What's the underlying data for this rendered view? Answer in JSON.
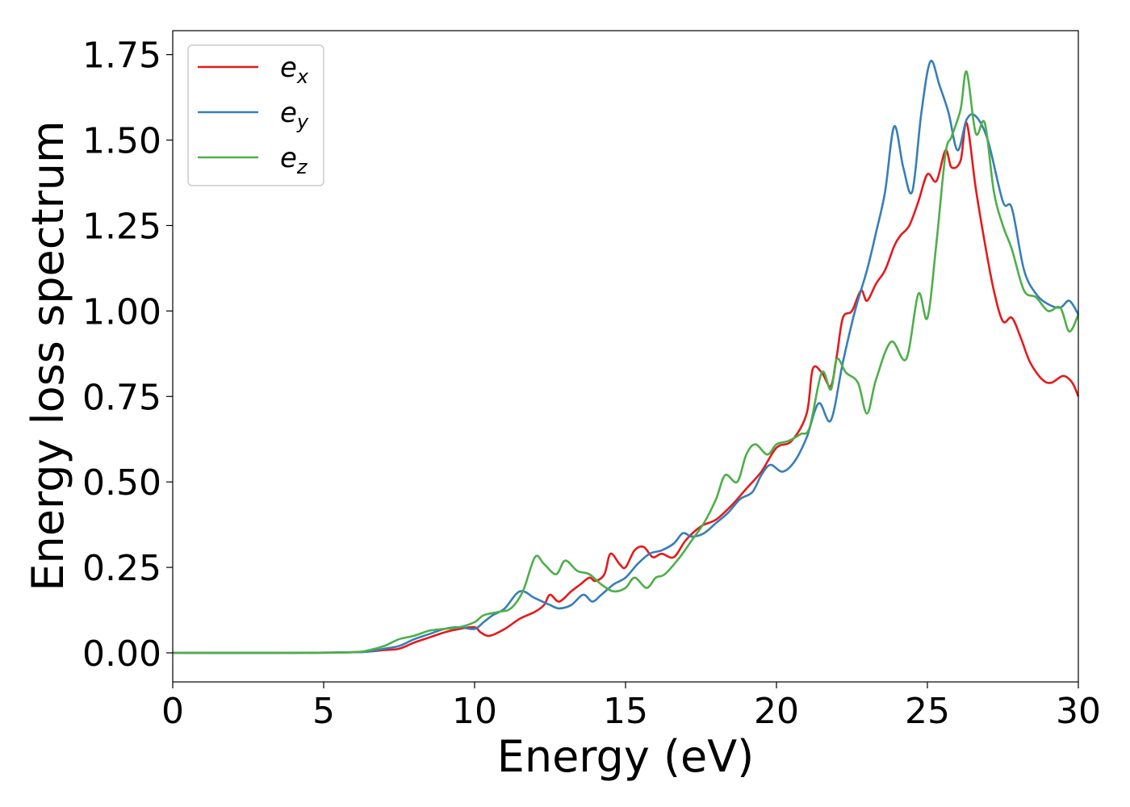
{
  "chart_data": {
    "type": "line",
    "title": "",
    "xlabel": "Energy (eV)",
    "ylabel": "Energy loss spectrum",
    "xlim": [
      0,
      30
    ],
    "ylim": [
      -0.085,
      1.82
    ],
    "xticks": [
      0,
      5,
      10,
      15,
      20,
      25,
      30
    ],
    "xtick_labels": [
      "0",
      "5",
      "10",
      "15",
      "20",
      "25",
      "30"
    ],
    "yticks": [
      0.0,
      0.25,
      0.5,
      0.75,
      1.0,
      1.25,
      1.5,
      1.75
    ],
    "ytick_labels": [
      "0.00",
      "0.25",
      "0.50",
      "0.75",
      "1.00",
      "1.25",
      "1.50",
      "1.75"
    ],
    "grid": false,
    "legend_position": "upper-left",
    "series": [
      {
        "name": "e_x",
        "base": "e",
        "sub": "x",
        "color": "#e41a1c",
        "points": [
          [
            0,
            0
          ],
          [
            4,
            0
          ],
          [
            6,
            0.002
          ],
          [
            6.5,
            0.004
          ],
          [
            7,
            0.008
          ],
          [
            7.5,
            0.012
          ],
          [
            8,
            0.03
          ],
          [
            8.5,
            0.045
          ],
          [
            9,
            0.06
          ],
          [
            9.5,
            0.07
          ],
          [
            10,
            0.075
          ],
          [
            10.2,
            0.06
          ],
          [
            10.5,
            0.05
          ],
          [
            11,
            0.07
          ],
          [
            11.5,
            0.1
          ],
          [
            12,
            0.12
          ],
          [
            12.3,
            0.14
          ],
          [
            12.5,
            0.17
          ],
          [
            12.8,
            0.15
          ],
          [
            13.2,
            0.18
          ],
          [
            13.5,
            0.2
          ],
          [
            13.8,
            0.22
          ],
          [
            14,
            0.21
          ],
          [
            14.3,
            0.23
          ],
          [
            14.5,
            0.29
          ],
          [
            14.8,
            0.26
          ],
          [
            15,
            0.25
          ],
          [
            15.3,
            0.3
          ],
          [
            15.6,
            0.31
          ],
          [
            15.9,
            0.28
          ],
          [
            16.2,
            0.29
          ],
          [
            16.6,
            0.28
          ],
          [
            17,
            0.33
          ],
          [
            17.5,
            0.37
          ],
          [
            18,
            0.39
          ],
          [
            18.5,
            0.43
          ],
          [
            19,
            0.48
          ],
          [
            19.5,
            0.53
          ],
          [
            20,
            0.6
          ],
          [
            20.5,
            0.62
          ],
          [
            21,
            0.7
          ],
          [
            21.2,
            0.83
          ],
          [
            21.5,
            0.82
          ],
          [
            21.8,
            0.78
          ],
          [
            22,
            0.87
          ],
          [
            22.2,
            0.98
          ],
          [
            22.5,
            1.0
          ],
          [
            22.8,
            1.06
          ],
          [
            23,
            1.03
          ],
          [
            23.3,
            1.08
          ],
          [
            23.6,
            1.12
          ],
          [
            23.9,
            1.19
          ],
          [
            24.1,
            1.22
          ],
          [
            24.4,
            1.25
          ],
          [
            24.7,
            1.32
          ],
          [
            25,
            1.4
          ],
          [
            25.3,
            1.38
          ],
          [
            25.6,
            1.47
          ],
          [
            25.8,
            1.42
          ],
          [
            26.1,
            1.44
          ],
          [
            26.3,
            1.55
          ],
          [
            26.6,
            1.36
          ],
          [
            26.9,
            1.2
          ],
          [
            27.2,
            1.06
          ],
          [
            27.5,
            0.97
          ],
          [
            27.8,
            0.98
          ],
          [
            28.1,
            0.92
          ],
          [
            28.4,
            0.85
          ],
          [
            28.8,
            0.8
          ],
          [
            29.1,
            0.79
          ],
          [
            29.5,
            0.81
          ],
          [
            29.8,
            0.79
          ],
          [
            30,
            0.75
          ]
        ]
      },
      {
        "name": "e_y",
        "base": "e",
        "sub": "y",
        "color": "#377eb8",
        "points": [
          [
            0,
            0
          ],
          [
            4,
            0
          ],
          [
            6,
            0.002
          ],
          [
            6.5,
            0.004
          ],
          [
            7,
            0.012
          ],
          [
            7.5,
            0.02
          ],
          [
            8,
            0.04
          ],
          [
            8.5,
            0.055
          ],
          [
            9,
            0.07
          ],
          [
            9.5,
            0.075
          ],
          [
            10,
            0.07
          ],
          [
            10.3,
            0.09
          ],
          [
            10.6,
            0.11
          ],
          [
            11,
            0.13
          ],
          [
            11.5,
            0.18
          ],
          [
            12,
            0.16
          ],
          [
            12.5,
            0.14
          ],
          [
            12.8,
            0.13
          ],
          [
            13.2,
            0.14
          ],
          [
            13.6,
            0.17
          ],
          [
            13.9,
            0.15
          ],
          [
            14.2,
            0.17
          ],
          [
            14.6,
            0.2
          ],
          [
            15,
            0.22
          ],
          [
            15.4,
            0.26
          ],
          [
            15.8,
            0.29
          ],
          [
            16.2,
            0.3
          ],
          [
            16.6,
            0.32
          ],
          [
            16.9,
            0.35
          ],
          [
            17.2,
            0.34
          ],
          [
            17.6,
            0.35
          ],
          [
            18,
            0.38
          ],
          [
            18.4,
            0.41
          ],
          [
            18.8,
            0.45
          ],
          [
            19.2,
            0.47
          ],
          [
            19.5,
            0.52
          ],
          [
            19.8,
            0.55
          ],
          [
            20.2,
            0.53
          ],
          [
            20.6,
            0.56
          ],
          [
            21,
            0.63
          ],
          [
            21.4,
            0.73
          ],
          [
            21.8,
            0.68
          ],
          [
            22.2,
            0.85
          ],
          [
            22.6,
            1.0
          ],
          [
            23,
            1.12
          ],
          [
            23.3,
            1.23
          ],
          [
            23.6,
            1.35
          ],
          [
            23.9,
            1.54
          ],
          [
            24.2,
            1.42
          ],
          [
            24.5,
            1.35
          ],
          [
            24.8,
            1.58
          ],
          [
            25.1,
            1.73
          ],
          [
            25.4,
            1.66
          ],
          [
            25.7,
            1.58
          ],
          [
            26,
            1.47
          ],
          [
            26.3,
            1.56
          ],
          [
            26.6,
            1.57
          ],
          [
            27,
            1.5
          ],
          [
            27.5,
            1.32
          ],
          [
            27.8,
            1.3
          ],
          [
            28.2,
            1.12
          ],
          [
            28.6,
            1.05
          ],
          [
            29,
            1.02
          ],
          [
            29.4,
            1.01
          ],
          [
            29.7,
            1.03
          ],
          [
            30,
            0.99
          ]
        ]
      },
      {
        "name": "e_z",
        "base": "e",
        "sub": "z",
        "color": "#4daf4a",
        "points": [
          [
            0,
            0
          ],
          [
            4,
            0
          ],
          [
            6,
            0.002
          ],
          [
            6.5,
            0.008
          ],
          [
            7,
            0.02
          ],
          [
            7.5,
            0.04
          ],
          [
            8,
            0.05
          ],
          [
            8.5,
            0.065
          ],
          [
            9,
            0.07
          ],
          [
            9.5,
            0.075
          ],
          [
            10,
            0.09
          ],
          [
            10.3,
            0.11
          ],
          [
            10.8,
            0.12
          ],
          [
            11.2,
            0.13
          ],
          [
            11.6,
            0.18
          ],
          [
            12,
            0.28
          ],
          [
            12.3,
            0.26
          ],
          [
            12.7,
            0.23
          ],
          [
            13,
            0.27
          ],
          [
            13.4,
            0.24
          ],
          [
            13.8,
            0.23
          ],
          [
            14.2,
            0.2
          ],
          [
            14.6,
            0.18
          ],
          [
            15,
            0.19
          ],
          [
            15.3,
            0.22
          ],
          [
            15.7,
            0.19
          ],
          [
            16,
            0.22
          ],
          [
            16.3,
            0.23
          ],
          [
            16.8,
            0.28
          ],
          [
            17.2,
            0.33
          ],
          [
            17.6,
            0.38
          ],
          [
            18,
            0.45
          ],
          [
            18.3,
            0.52
          ],
          [
            18.7,
            0.5
          ],
          [
            19,
            0.58
          ],
          [
            19.3,
            0.61
          ],
          [
            19.7,
            0.58
          ],
          [
            20,
            0.61
          ],
          [
            20.4,
            0.62
          ],
          [
            20.8,
            0.64
          ],
          [
            21.1,
            0.66
          ],
          [
            21.5,
            0.82
          ],
          [
            21.8,
            0.77
          ],
          [
            22,
            0.86
          ],
          [
            22.3,
            0.82
          ],
          [
            22.7,
            0.79
          ],
          [
            23,
            0.7
          ],
          [
            23.3,
            0.8
          ],
          [
            23.8,
            0.91
          ],
          [
            24.3,
            0.86
          ],
          [
            24.7,
            1.05
          ],
          [
            25,
            0.98
          ],
          [
            25.3,
            1.2
          ],
          [
            25.6,
            1.46
          ],
          [
            25.8,
            1.51
          ],
          [
            26.1,
            1.59
          ],
          [
            26.3,
            1.7
          ],
          [
            26.6,
            1.52
          ],
          [
            26.9,
            1.55
          ],
          [
            27.2,
            1.35
          ],
          [
            27.5,
            1.25
          ],
          [
            27.8,
            1.18
          ],
          [
            28.2,
            1.06
          ],
          [
            28.6,
            1.04
          ],
          [
            29,
            1.0
          ],
          [
            29.4,
            1.01
          ],
          [
            29.7,
            0.94
          ],
          [
            30,
            0.99
          ]
        ]
      }
    ]
  }
}
